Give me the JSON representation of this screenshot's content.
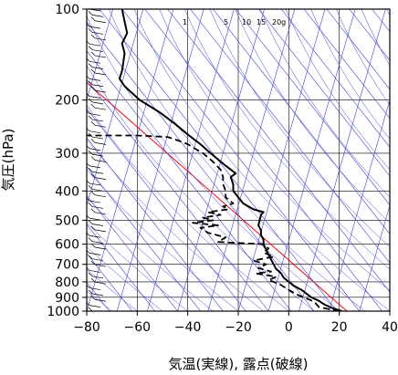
{
  "chart_data": {
    "type": "line",
    "title": "",
    "xlabel": "気温(実線), 露点(破線)",
    "ylabel": "気圧(hPa)",
    "xlim": [
      -80,
      40
    ],
    "ylim": [
      1000,
      100
    ],
    "y_scale": "log",
    "x_ticks": [
      -80,
      -60,
      -40,
      -20,
      0,
      20,
      40
    ],
    "x_tick_labels": [
      "−80",
      "−60",
      "−40",
      "−20",
      "0",
      "20",
      "40"
    ],
    "y_ticks": [
      1000,
      900,
      800,
      700,
      600,
      500,
      400,
      300,
      200,
      100
    ],
    "y_tick_labels": [
      "1000",
      "900",
      "800",
      "700",
      "600",
      "500",
      "400",
      "300",
      "200",
      "100"
    ],
    "mixing_ratio_labels": [
      "1",
      "5",
      "10",
      "15",
      "20g"
    ],
    "colors": {
      "background": "#ffffff",
      "temperature": "#000000",
      "dewpoint": "#000000",
      "reference_line": "#ff0000",
      "isotherms": "#4040dd",
      "grid": "#000000"
    },
    "grid": true,
    "series": [
      {
        "name": "気温",
        "style": "solid",
        "points": [
          [
            1000,
            21
          ],
          [
            975,
            17
          ],
          [
            950,
            14
          ],
          [
            925,
            12
          ],
          [
            900,
            9
          ],
          [
            875,
            7
          ],
          [
            850,
            5
          ],
          [
            825,
            2
          ],
          [
            800,
            0
          ],
          [
            775,
            -2
          ],
          [
            750,
            -3
          ],
          [
            725,
            -5
          ],
          [
            700,
            -6
          ],
          [
            675,
            -7
          ],
          [
            650,
            -8
          ],
          [
            625,
            -9
          ],
          [
            600,
            -10
          ],
          [
            580,
            -10
          ],
          [
            560,
            -11
          ],
          [
            540,
            -11
          ],
          [
            520,
            -12
          ],
          [
            500,
            -11.5
          ],
          [
            480,
            -11
          ],
          [
            470,
            -10
          ],
          [
            460,
            -14
          ],
          [
            440,
            -18
          ],
          [
            420,
            -20
          ],
          [
            400,
            -22
          ],
          [
            380,
            -22
          ],
          [
            360,
            -23
          ],
          [
            350,
            -21
          ],
          [
            330,
            -25
          ],
          [
            300,
            -31
          ],
          [
            280,
            -35
          ],
          [
            260,
            -40
          ],
          [
            240,
            -45
          ],
          [
            220,
            -51
          ],
          [
            200,
            -59
          ],
          [
            180,
            -65
          ],
          [
            170,
            -67
          ],
          [
            160,
            -66
          ],
          [
            150,
            -65.5
          ],
          [
            140,
            -65
          ],
          [
            130,
            -66
          ],
          [
            120,
            -64
          ],
          [
            110,
            -65
          ],
          [
            100,
            -66
          ]
        ]
      },
      {
        "name": "露点",
        "style": "dashed",
        "points": [
          [
            1000,
            20
          ],
          [
            970,
            12
          ],
          [
            950,
            11
          ],
          [
            930,
            10
          ],
          [
            900,
            6
          ],
          [
            880,
            3
          ],
          [
            860,
            1
          ],
          [
            850,
            0
          ],
          [
            820,
            -3
          ],
          [
            800,
            -6
          ],
          [
            790,
            -8
          ],
          [
            770,
            -5
          ],
          [
            750,
            -13
          ],
          [
            740,
            -7
          ],
          [
            720,
            -12
          ],
          [
            700,
            -9
          ],
          [
            680,
            -14
          ],
          [
            660,
            -6
          ],
          [
            640,
            -10
          ],
          [
            620,
            -8
          ],
          [
            600,
            -10
          ],
          [
            590,
            -28
          ],
          [
            570,
            -25
          ],
          [
            550,
            -32
          ],
          [
            530,
            -35
          ],
          [
            520,
            -28
          ],
          [
            510,
            -38
          ],
          [
            500,
            -30
          ],
          [
            490,
            -34
          ],
          [
            480,
            -27
          ],
          [
            470,
            -32
          ],
          [
            460,
            -24
          ],
          [
            450,
            -26
          ],
          [
            440,
            -22
          ],
          [
            420,
            -25
          ],
          [
            400,
            -25
          ],
          [
            380,
            -26
          ],
          [
            360,
            -26
          ],
          [
            340,
            -27
          ],
          [
            320,
            -30
          ],
          [
            300,
            -34
          ],
          [
            290,
            -37
          ],
          [
            280,
            -40
          ],
          [
            270,
            -45
          ],
          [
            265,
            -48
          ],
          [
            262,
            -60
          ],
          [
            262,
            -80
          ]
        ]
      }
    ]
  }
}
